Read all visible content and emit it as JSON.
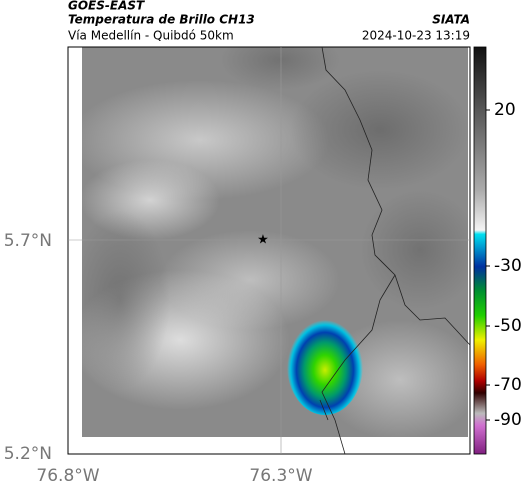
{
  "header": {
    "product": "GOES-EAST",
    "title": "Temperatura de Brillo CH13",
    "subtitle": "Vía Medellín - Quibdó 50km",
    "source": "SIATA",
    "datetime": "2024-10-23 13:19"
  },
  "map": {
    "lat_labels": [
      "5.7°N",
      "5.2°N"
    ],
    "lon_labels": [
      "76.8°W",
      "76.3°W"
    ]
  },
  "colorbar": {
    "tick_labels": [
      "20",
      "-30",
      "-50",
      "-70",
      "-90"
    ]
  }
}
